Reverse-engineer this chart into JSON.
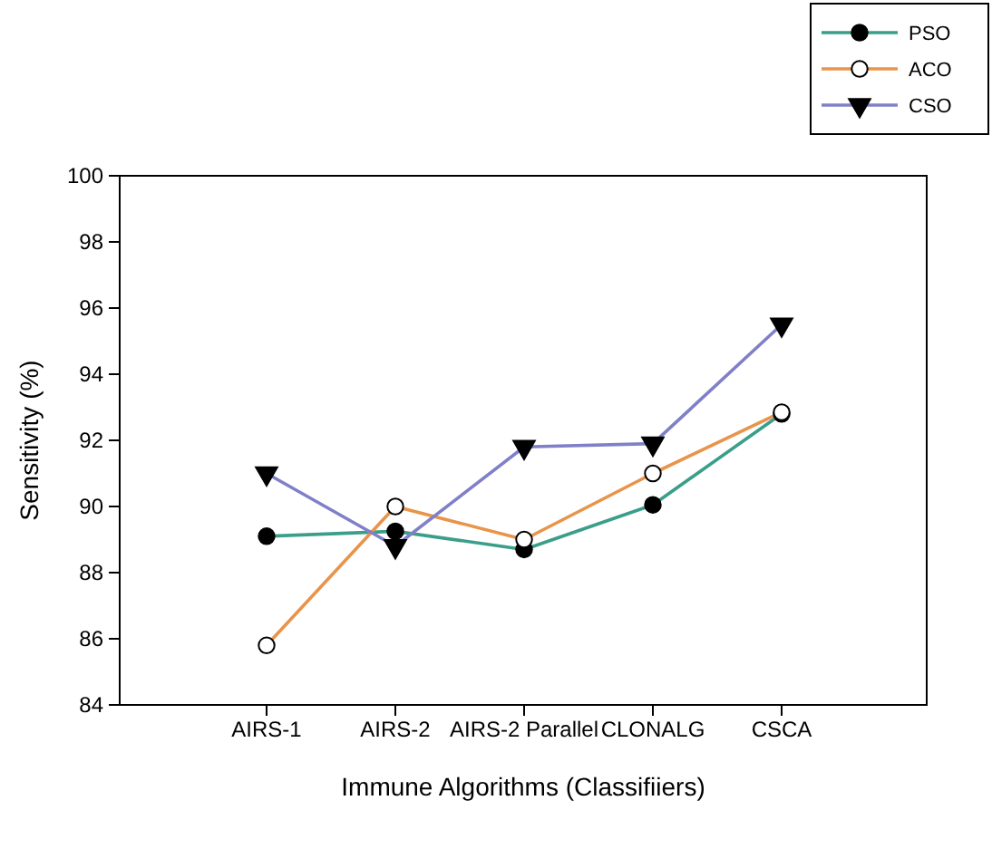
{
  "chart_data": {
    "type": "line",
    "xlabel": "Immune Algorithms (Classifiiers)",
    "ylabel": "Sensitivity (%)",
    "categories": [
      "AIRS-1",
      "AIRS-2",
      "AIRS-2 Parallel",
      "CLONALG",
      "CSCA"
    ],
    "series": [
      {
        "name": "PSO",
        "color": "#3a9e8a",
        "marker": "circle",
        "values": [
          89.1,
          89.25,
          88.7,
          90.05,
          92.8
        ]
      },
      {
        "name": "ACO",
        "color": "#e8944a",
        "marker": "circle",
        "values": [
          85.8,
          90.0,
          89.0,
          91.0,
          92.85
        ]
      },
      {
        "name": "CSO",
        "color": "#8080c8",
        "marker": "triangle",
        "values": [
          91.0,
          88.8,
          91.8,
          91.9,
          95.5
        ]
      }
    ],
    "ylim": [
      84,
      100
    ],
    "yticks": [
      84,
      86,
      88,
      90,
      92,
      94,
      96,
      98,
      100
    ],
    "grid": false,
    "legend": "top right",
    "line_style": "solid"
  }
}
